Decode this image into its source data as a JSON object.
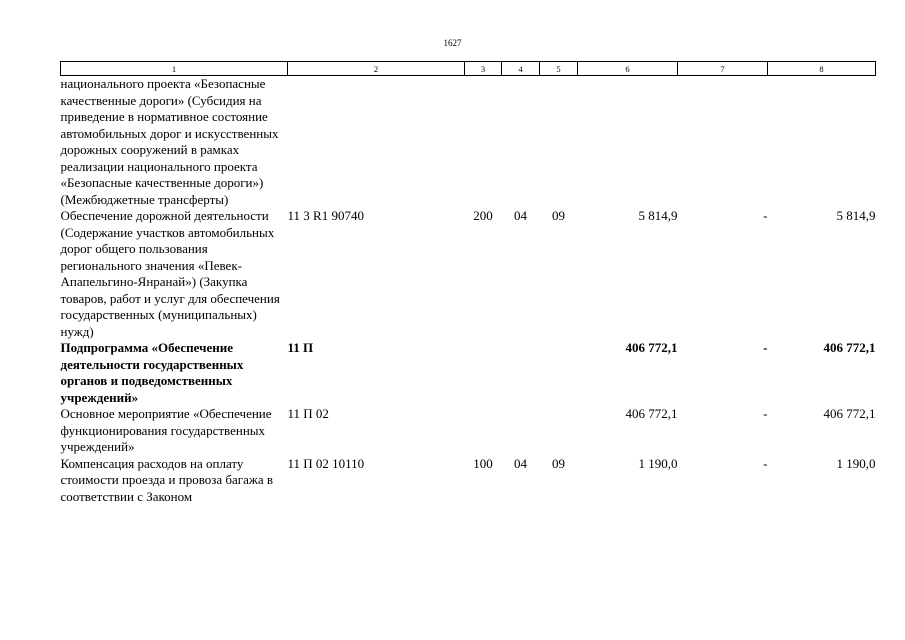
{
  "page": {
    "number": "1627"
  },
  "header_cols": [
    "1",
    "2",
    "3",
    "4",
    "5",
    "6",
    "7",
    "8"
  ],
  "rows": [
    {
      "name": "национального проекта «Безопасные качественные дороги» (Субсидия на приведение в нормативное состояние автомобильных дорог и искусственных дорожных сооружений в рамках реализации национального проекта «Безопасные качественные дороги») (Межбюджетные трансферты)",
      "code": "",
      "c3": "",
      "c4": "",
      "c5": "",
      "c6": "",
      "c7": "",
      "c8": "",
      "bold": false
    },
    {
      "name": "Обеспечение дорожной деятельности (Содержание участков автомобильных дорог общего пользования регионального значения «Певек-Апапельгино-Янранай») (Закупка товаров, работ и услуг для обеспечения государственных (муниципальных) нужд)",
      "code": "11 3 R1 90740",
      "c3": "200",
      "c4": "04",
      "c5": "09",
      "c6": "5 814,9",
      "c7": "-",
      "c8": "5 814,9",
      "bold": false
    },
    {
      "name": "Подпрограмма «Обеспечение деятельности государственных органов и подведомственных учреждений»",
      "code": "11 П",
      "c3": "",
      "c4": "",
      "c5": "",
      "c6": "406 772,1",
      "c7": "-",
      "c8": "406 772,1",
      "bold": true
    },
    {
      "name": "Основное мероприятие «Обеспечение функционирования государственных учреждений»",
      "code": "11 П 02",
      "c3": "",
      "c4": "",
      "c5": "",
      "c6": "406 772,1",
      "c7": "-",
      "c8": "406 772,1",
      "bold": false
    },
    {
      "name": "Компенсация расходов на оплату стоимости проезда и провоза багажа в соответствии с Законом",
      "code": "11 П 02 10110",
      "c3": "100",
      "c4": "04",
      "c5": "09",
      "c6": "1 190,0",
      "c7": "-",
      "c8": "1 190,0",
      "bold": false
    }
  ]
}
